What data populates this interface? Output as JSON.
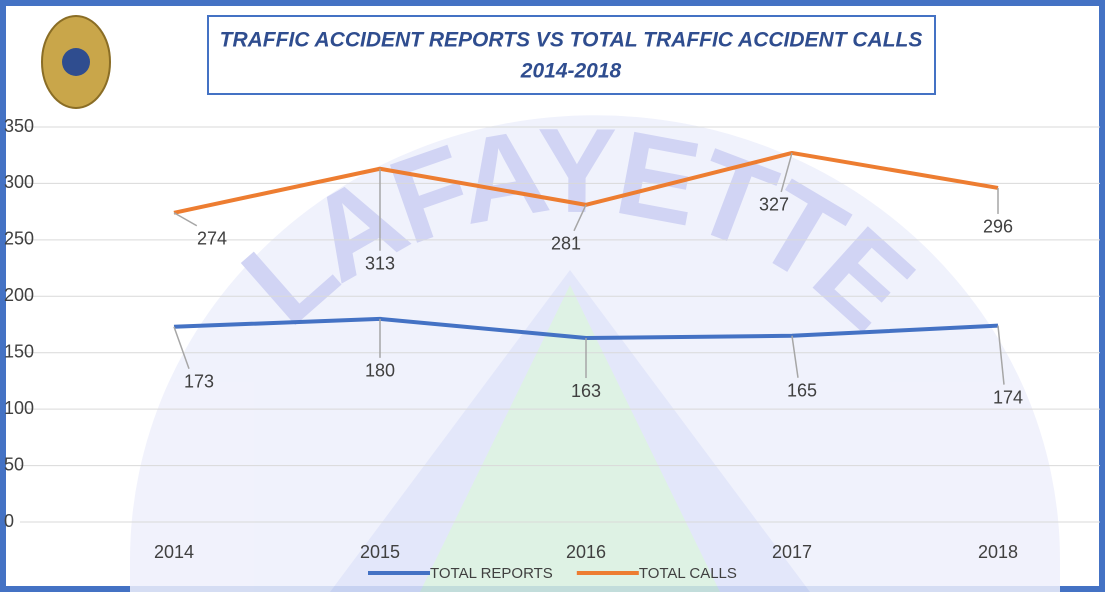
{
  "chart_data": {
    "type": "line",
    "title": "TRAFFIC ACCIDENT REPORTS VS TOTAL TRAFFIC ACCIDENT CALLS",
    "subtitle": "2014-2018",
    "watermark": "LAFAYETTE",
    "categories": [
      "2014",
      "2015",
      "2016",
      "2017",
      "2018"
    ],
    "series": [
      {
        "name": "TOTAL REPORTS",
        "color": "#4472c4",
        "values": [
          173,
          180,
          163,
          165,
          174
        ]
      },
      {
        "name": "TOTAL CALLS",
        "color": "#ed7d31",
        "values": [
          274,
          313,
          281,
          327,
          296
        ]
      }
    ],
    "ylim": [
      0,
      350
    ],
    "yticks": [
      0,
      50,
      100,
      150,
      200,
      250,
      300,
      350
    ],
    "grid": true,
    "legend": "bottom"
  }
}
